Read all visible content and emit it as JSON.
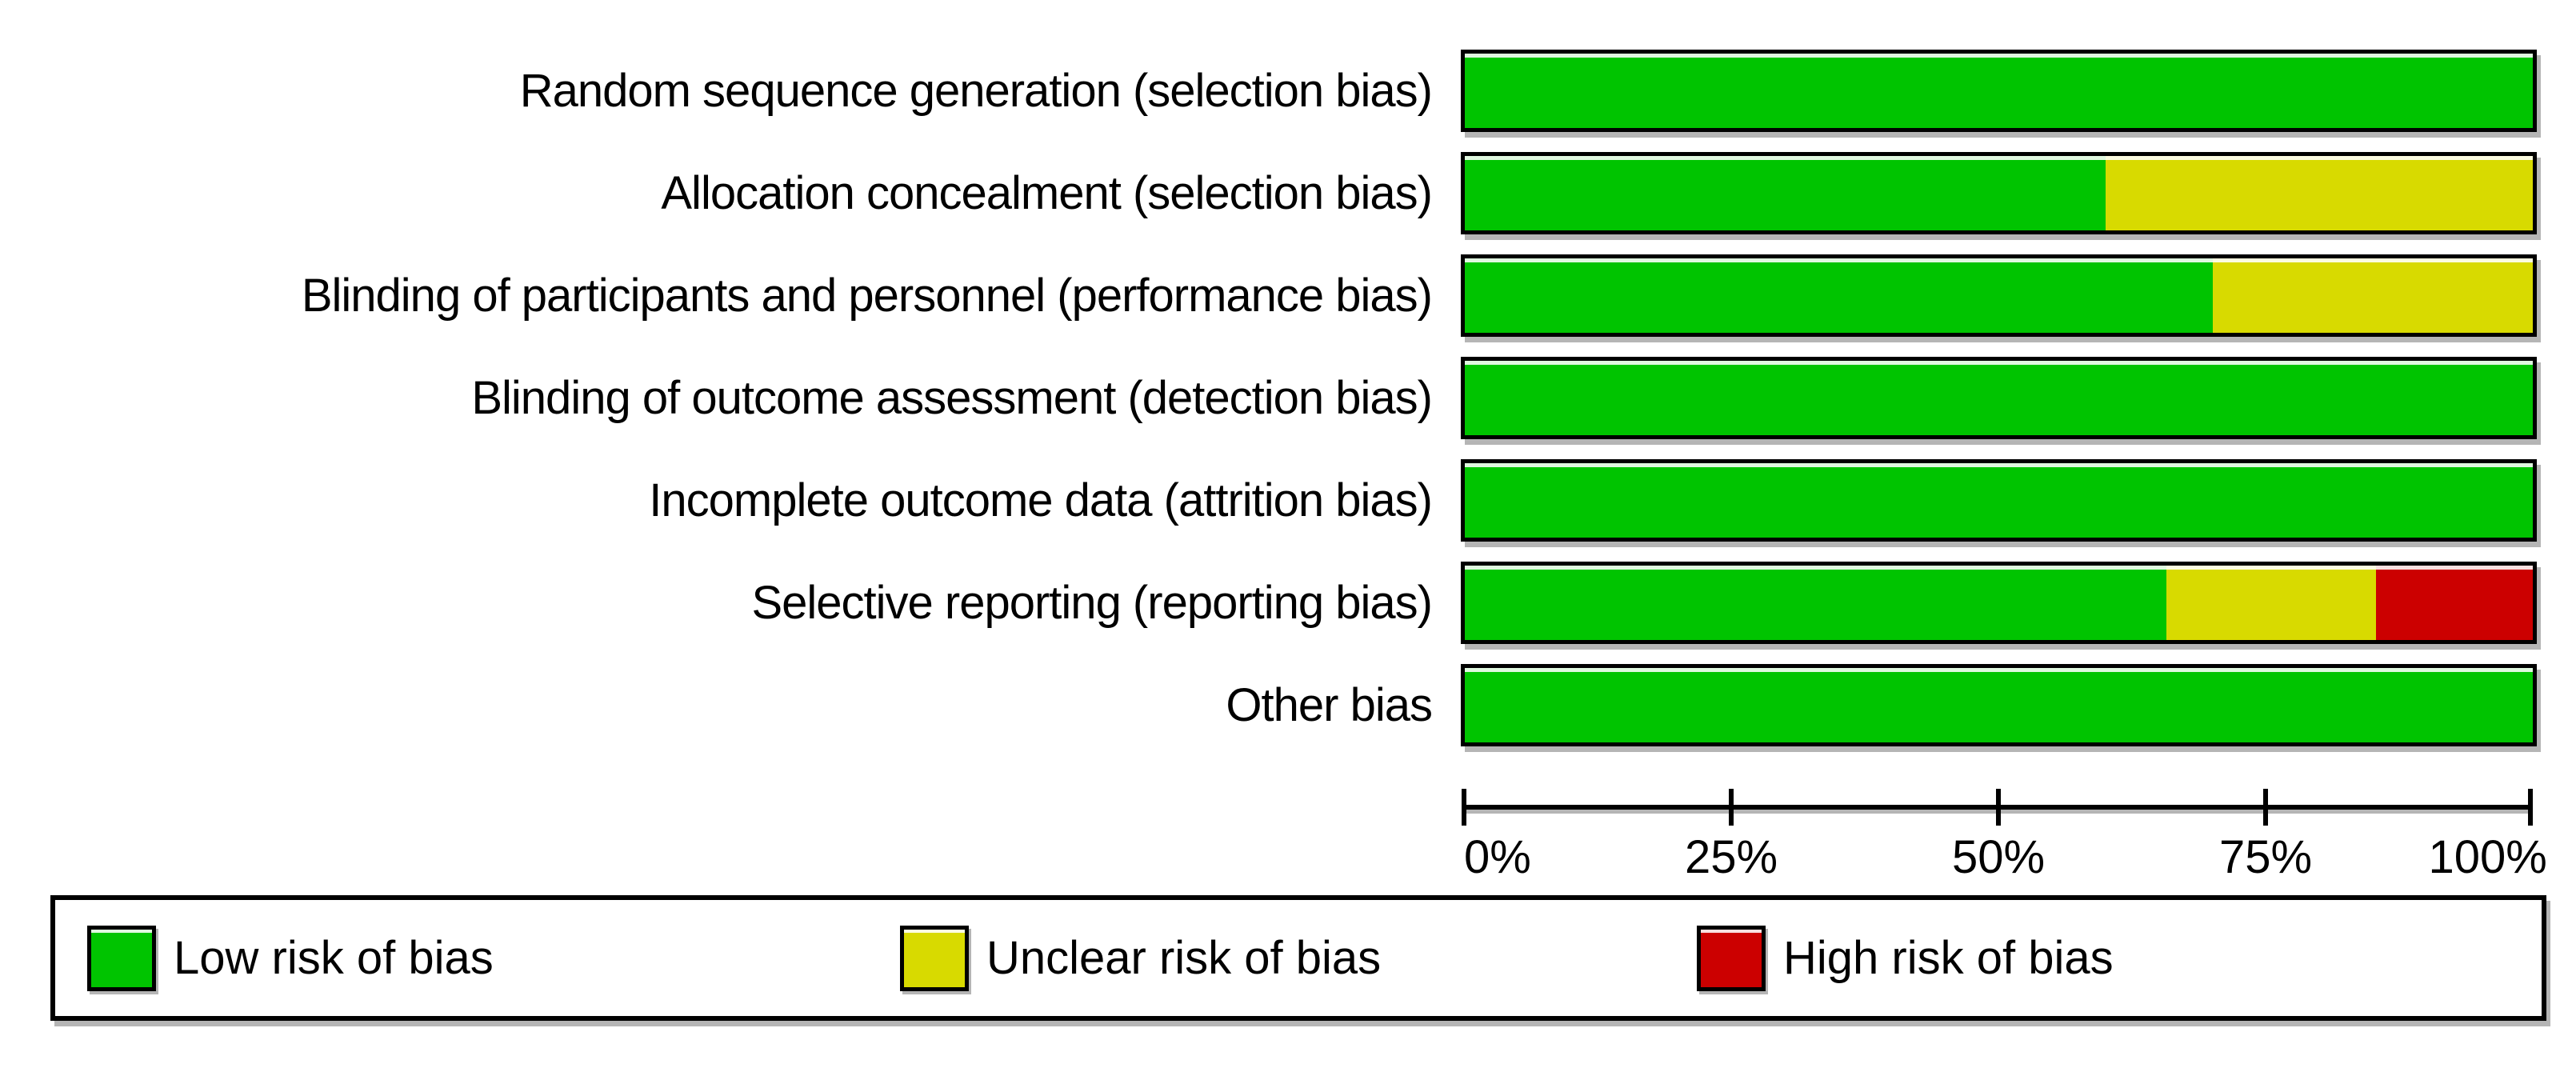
{
  "chart_data": {
    "type": "bar",
    "orientation": "horizontal",
    "stacked": true,
    "categories": [
      "Random sequence generation (selection bias)",
      "Allocation concealment (selection bias)",
      "Blinding of participants and personnel (performance bias)",
      "Blinding of outcome assessment (detection bias)",
      "Incomplete outcome data (attrition bias)",
      "Selective reporting (reporting bias)",
      "Other bias"
    ],
    "series": [
      {
        "name": "Low risk of bias",
        "color": "#00c400",
        "values": [
          100,
          60,
          70,
          100,
          100,
          65.7,
          100
        ]
      },
      {
        "name": "Unclear risk of bias",
        "color": "#d8da00",
        "values": [
          0,
          40,
          30,
          0,
          0,
          19.6,
          0
        ]
      },
      {
        "name": "High risk of bias",
        "color": "#cc0000",
        "values": [
          0,
          0,
          0,
          0,
          0,
          14.7,
          0
        ]
      }
    ],
    "x_ticks": [
      "0%",
      "25%",
      "50%",
      "75%",
      "100%"
    ],
    "x_range": [
      0,
      100
    ],
    "grid": false,
    "legend_position": "bottom",
    "colors": {
      "low_risk": "#00c400",
      "unclear_risk": "#d8da00",
      "high_risk": "#cc0000",
      "bar_border": "#000000",
      "shadow": "#b5b5b5"
    }
  }
}
